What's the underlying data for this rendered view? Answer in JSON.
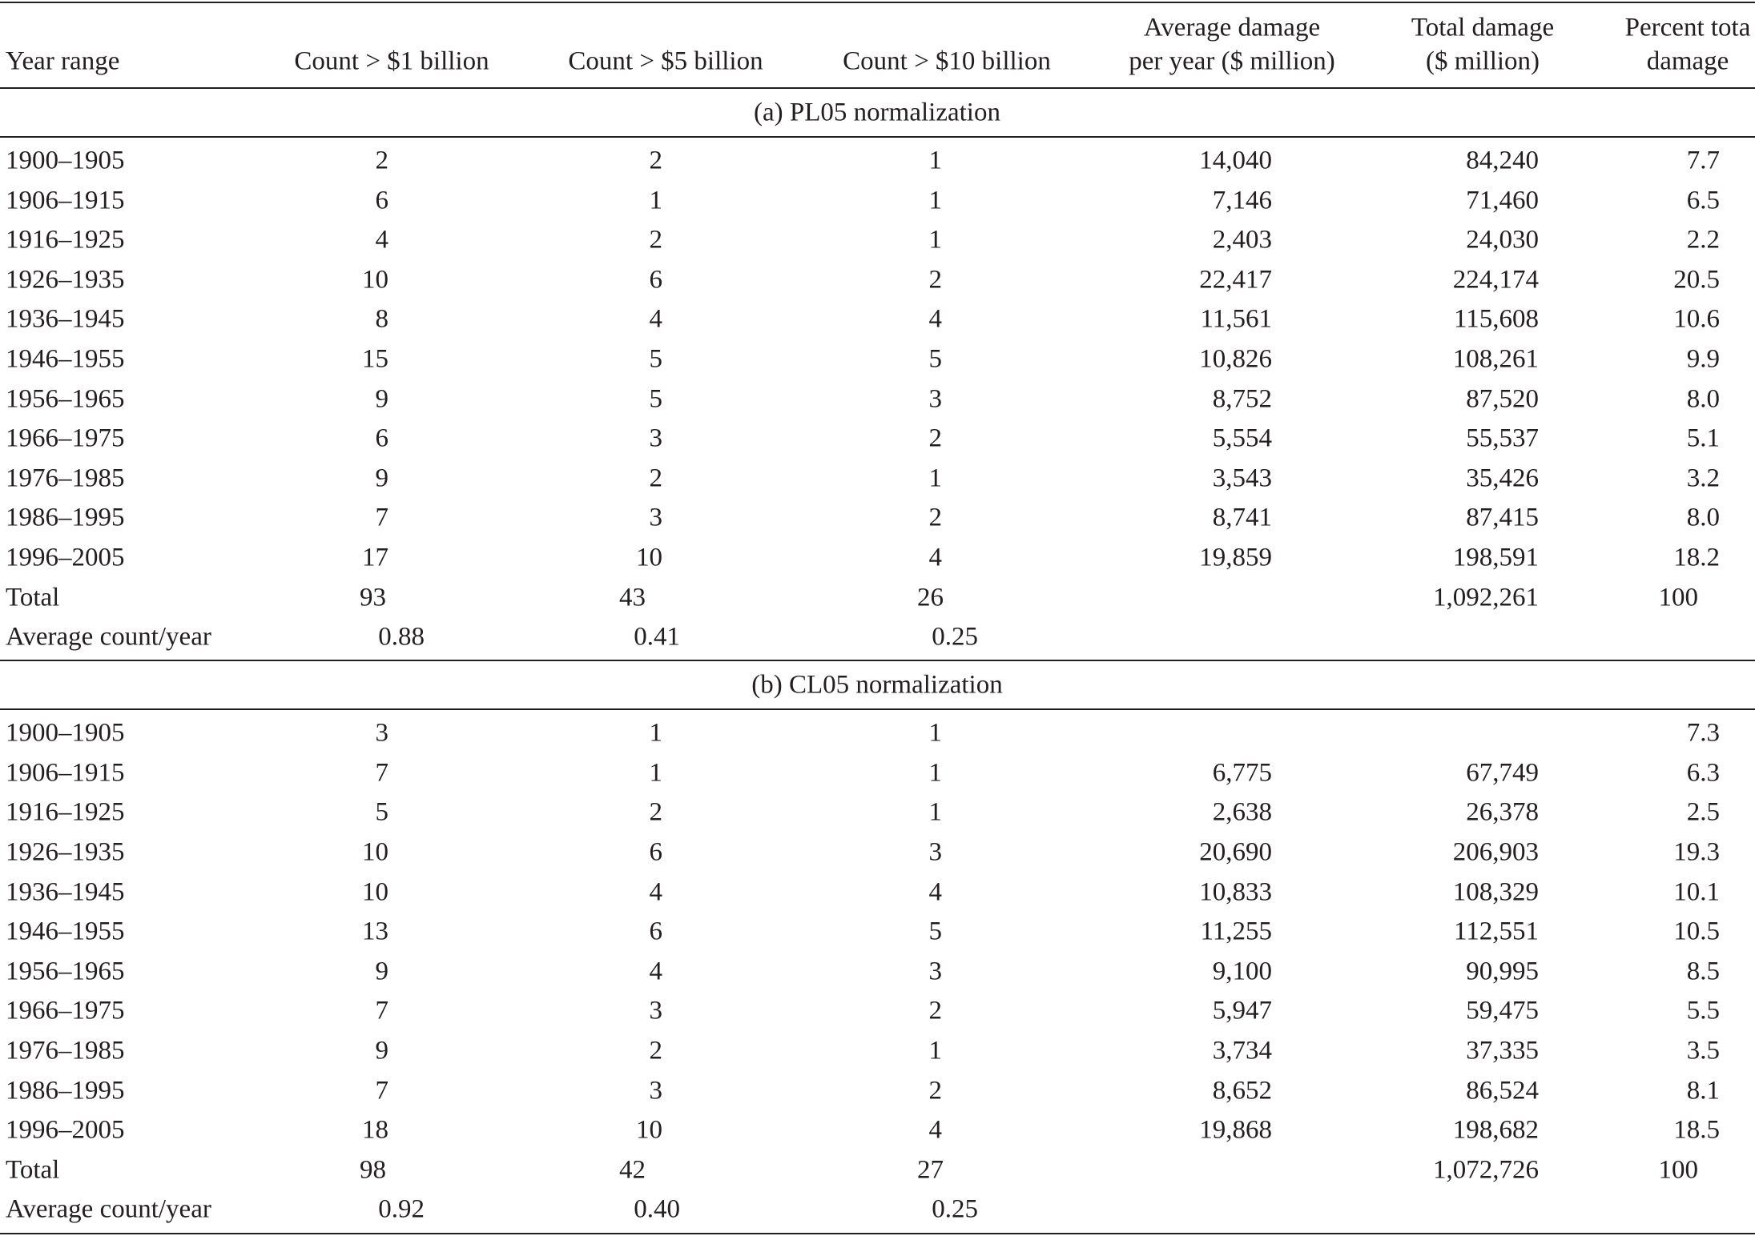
{
  "table": {
    "headers": [
      [
        "Year range"
      ],
      [
        "Count > $1 billion"
      ],
      [
        "Count > $5 billion"
      ],
      [
        "Count > $10 billion"
      ],
      [
        "Average damage",
        "per year ($ million)"
      ],
      [
        "Total damage",
        "($ million)"
      ],
      [
        "Percent tota",
        "damage"
      ]
    ],
    "sections": [
      {
        "title": "(a) PL05 normalization",
        "rows": [
          [
            "1900–1905",
            "2",
            "2",
            "1",
            "14,040",
            "84,240",
            "7.7"
          ],
          [
            "1906–1915",
            "6",
            "1",
            "1",
            "7,146",
            "71,460",
            "6.5"
          ],
          [
            "1916–1925",
            "4",
            "2",
            "1",
            "2,403",
            "24,030",
            "2.2"
          ],
          [
            "1926–1935",
            "10",
            "6",
            "2",
            "22,417",
            "224,174",
            "20.5"
          ],
          [
            "1936–1945",
            "8",
            "4",
            "4",
            "11,561",
            "115,608",
            "10.6"
          ],
          [
            "1946–1955",
            "15",
            "5",
            "5",
            "10,826",
            "108,261",
            "9.9"
          ],
          [
            "1956–1965",
            "9",
            "5",
            "3",
            "8,752",
            "87,520",
            "8.0"
          ],
          [
            "1966–1975",
            "6",
            "3",
            "2",
            "5,554",
            "55,537",
            "5.1"
          ],
          [
            "1976–1985",
            "9",
            "2",
            "1",
            "3,543",
            "35,426",
            "3.2"
          ],
          [
            "1986–1995",
            "7",
            "3",
            "2",
            "8,741",
            "87,415",
            "8.0"
          ],
          [
            "1996–2005",
            "17",
            "10",
            "4",
            "19,859",
            "198,591",
            "18.2"
          ]
        ],
        "total": [
          "Total",
          "93",
          "43",
          "26",
          null,
          "1,092,261",
          "100"
        ],
        "average": [
          "Average count/year",
          "0.88",
          "0.41",
          "0.25"
        ]
      },
      {
        "title": "(b) CL05 normalization",
        "rows": [
          [
            "1900–1905",
            "3",
            "1",
            "1",
            null,
            null,
            "7.3"
          ],
          [
            "1906–1915",
            "7",
            "1",
            "1",
            "6,775",
            "67,749",
            "6.3"
          ],
          [
            "1916–1925",
            "5",
            "2",
            "1",
            "2,638",
            "26,378",
            "2.5"
          ],
          [
            "1926–1935",
            "10",
            "6",
            "3",
            "20,690",
            "206,903",
            "19.3"
          ],
          [
            "1936–1945",
            "10",
            "4",
            "4",
            "10,833",
            "108,329",
            "10.1"
          ],
          [
            "1946–1955",
            "13",
            "6",
            "5",
            "11,255",
            "112,551",
            "10.5"
          ],
          [
            "1956–1965",
            "9",
            "4",
            "3",
            "9,100",
            "90,995",
            "8.5"
          ],
          [
            "1966–1975",
            "7",
            "3",
            "2",
            "5,947",
            "59,475",
            "5.5"
          ],
          [
            "1976–1985",
            "9",
            "2",
            "1",
            "3,734",
            "37,335",
            "3.5"
          ],
          [
            "1986–1995",
            "7",
            "3",
            "2",
            "8,652",
            "86,524",
            "8.1"
          ],
          [
            "1996–2005",
            "18",
            "10",
            "4",
            "19,868",
            "198,682",
            "18.5"
          ]
        ],
        "total": [
          "Total",
          "98",
          "42",
          "27",
          null,
          "1,072,726",
          "100"
        ],
        "average": [
          "Average count/year",
          "0.92",
          "0.40",
          "0.25"
        ]
      }
    ]
  }
}
